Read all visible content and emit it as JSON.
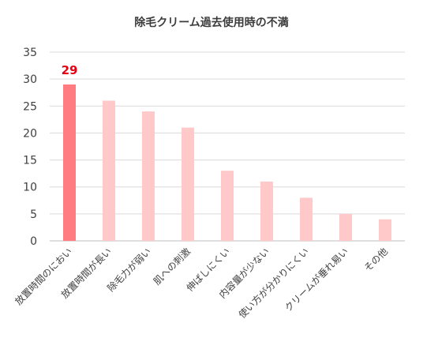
{
  "chart_data": {
    "type": "bar",
    "title": "除毛クリーム過去使用時の不満",
    "categories": [
      "放置時間のにおい",
      "放置時間が長い",
      "除毛力が弱い",
      "肌への刺激",
      "伸ばしにくい",
      "内容量が少ない",
      "使い方が分かりにくい",
      "クリームが垂れ易い",
      "その他"
    ],
    "values": [
      29,
      26,
      24,
      21,
      13,
      11,
      8,
      5,
      4
    ],
    "ylim": [
      0,
      35
    ],
    "yticks": [
      0,
      5,
      10,
      15,
      20,
      25,
      30,
      35
    ],
    "grid": true,
    "highlight_index": 0,
    "colors": {
      "highlight": "#ff7c80",
      "bar": "#ffc9c9",
      "data_label": "#e60012"
    },
    "data_labels": [
      {
        "index": 0,
        "text": "29"
      }
    ]
  }
}
